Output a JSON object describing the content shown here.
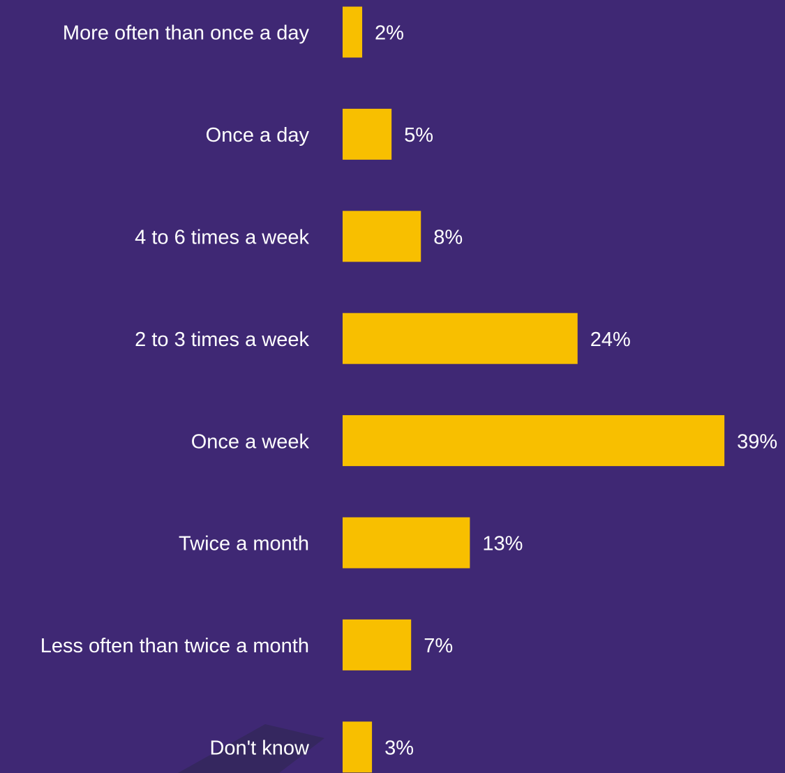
{
  "chart_data": {
    "type": "bar",
    "orientation": "horizontal",
    "categories": [
      "More often than once a day",
      "Once a day",
      "4 to 6 times a week",
      "2 to 3 times a week",
      "Once a week",
      "Twice a month",
      "Less often than twice a month",
      "Don't know"
    ],
    "values": [
      2,
      5,
      8,
      24,
      39,
      13,
      7,
      3
    ],
    "value_labels": [
      "2%",
      "5%",
      "8%",
      "24%",
      "39%",
      "13%",
      "7%",
      "3%"
    ],
    "color": "#f8bf00"
  }
}
